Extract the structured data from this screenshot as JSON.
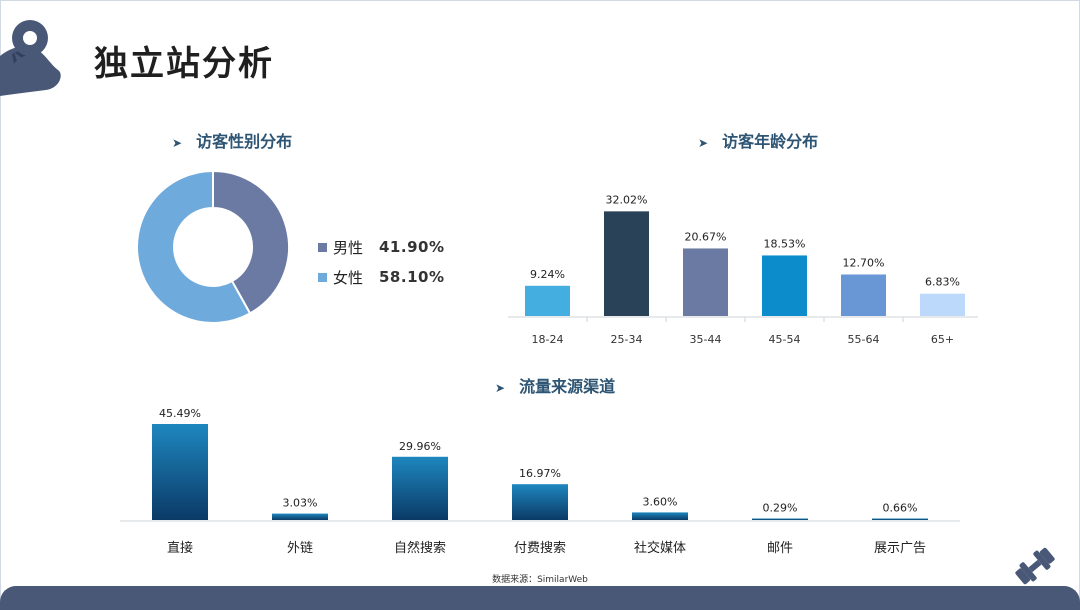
{
  "page": {
    "title": "独立站分析"
  },
  "chart_data": [
    {
      "type": "pie",
      "title": "访客性别分布",
      "donut": true,
      "categories": [
        "男性",
        "女性"
      ],
      "values": [
        41.9,
        58.1
      ],
      "labels": [
        "41.90%",
        "58.10%"
      ],
      "colors": [
        "#6b7aa3",
        "#6eaadc"
      ],
      "legend": "right"
    },
    {
      "type": "bar",
      "title": "访客年龄分布",
      "categories": [
        "18-24",
        "25-34",
        "35-44",
        "45-54",
        "55-64",
        "65+"
      ],
      "values": [
        9.24,
        32.02,
        20.67,
        18.53,
        12.7,
        6.83
      ],
      "labels": [
        "9.24%",
        "32.02%",
        "20.67%",
        "18.53%",
        "12.70%",
        "6.83%"
      ],
      "colors": [
        "#45aee0",
        "#2a4257",
        "#6b7aa3",
        "#0c8ccb",
        "#6996d4",
        "#bcd8fa"
      ],
      "ylim": [
        0,
        35
      ],
      "grid": false
    },
    {
      "type": "bar",
      "title": "流量来源渠道",
      "categories": [
        "直接",
        "外链",
        "自然搜索",
        "付费搜索",
        "社交媒体",
        "邮件",
        "展示广告"
      ],
      "values": [
        45.49,
        3.03,
        29.96,
        16.97,
        3.6,
        0.29,
        0.66
      ],
      "labels": [
        "45.49%",
        "3.03%",
        "29.96%",
        "16.97%",
        "3.60%",
        "0.29%",
        "0.66%"
      ],
      "colors": [
        "#1e87bf",
        "#0b3a66"
      ],
      "ylim": [
        0,
        50
      ],
      "grid": false
    }
  ],
  "footer": {
    "source": "数据来源：SimilarWeb"
  },
  "icons": {
    "logo": "strong-arm-icon",
    "corner": "dumbbell-icon"
  }
}
